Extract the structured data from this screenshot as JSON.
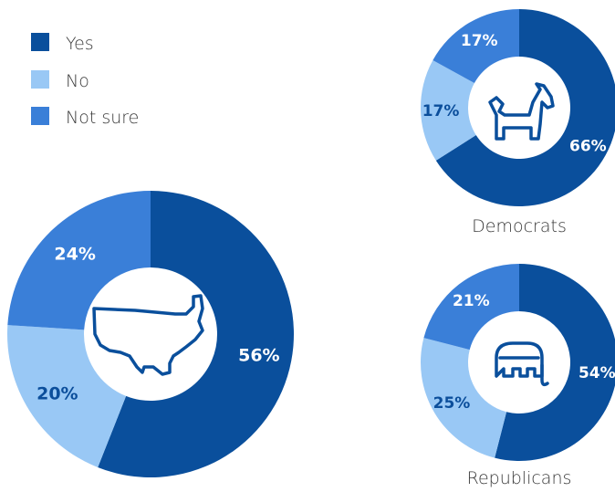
{
  "colors": {
    "yes": "#0a4f9c",
    "no": "#99c8f5",
    "not_sure": "#3a7fd8",
    "icon_stroke": "#0a4f9c"
  },
  "legend": [
    {
      "key": "yes",
      "label": "Yes"
    },
    {
      "key": "no",
      "label": "No"
    },
    {
      "key": "not_sure",
      "label": "Not sure"
    }
  ],
  "chart_data": [
    {
      "type": "pie",
      "title": "",
      "icon": "usa-map-icon",
      "categories": [
        "Yes",
        "No",
        "Not sure"
      ],
      "values": [
        56,
        20,
        24
      ],
      "labels": [
        "56%",
        "20%",
        "24%"
      ],
      "legend_position": "top-left"
    },
    {
      "type": "pie",
      "title": "Democrats",
      "icon": "donkey-icon",
      "categories": [
        "Yes",
        "No",
        "Not sure"
      ],
      "values": [
        66,
        17,
        17
      ],
      "labels": [
        "66%",
        "17%",
        "17%"
      ]
    },
    {
      "type": "pie",
      "title": "Republicans",
      "icon": "elephant-icon",
      "categories": [
        "Yes",
        "No",
        "Not sure"
      ],
      "values": [
        54,
        25,
        21
      ],
      "labels": [
        "54%",
        "25%",
        "21%"
      ]
    }
  ]
}
